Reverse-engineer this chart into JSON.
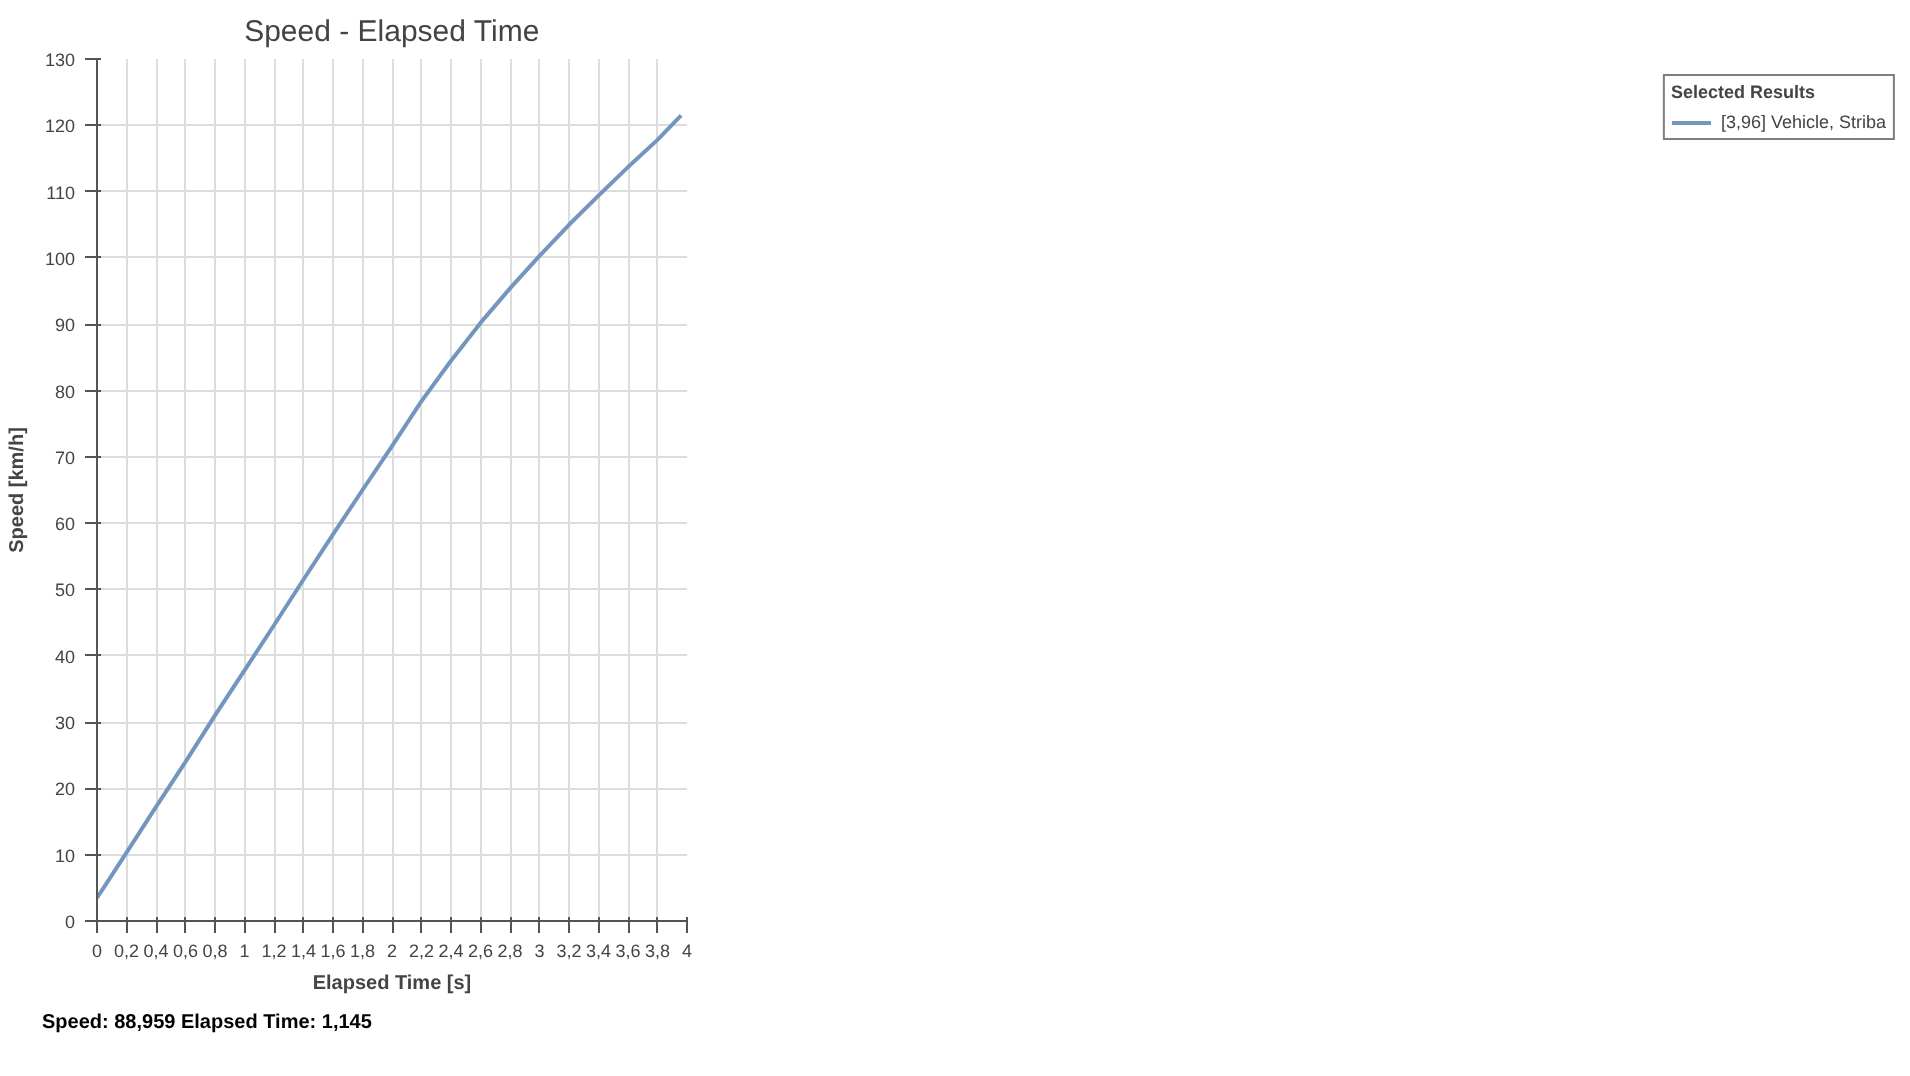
{
  "chart_data": {
    "type": "line",
    "title": "Speed - Elapsed Time",
    "xlabel": "Elapsed Time [s]",
    "ylabel": "Speed [km/h]",
    "legend_title": "Selected Results",
    "annotations": [
      "Speed: 88,959  Elapsed Time: 1,145"
    ],
    "x": [
      0,
      0.2,
      0.4,
      0.6,
      0.8,
      1.0,
      1.2,
      1.4,
      1.6,
      1.8,
      2.0,
      2.2,
      2.4,
      2.6,
      2.8,
      3.0,
      3.2,
      3.4,
      3.6,
      3.8,
      3.96
    ],
    "series": [
      {
        "name": "[3,96] Vehicle, Striba",
        "color": "#7396be",
        "values": [
          3.5,
          10.3,
          17.2,
          24,
          31,
          37.8,
          44.6,
          51.5,
          58.3,
          65,
          71.6,
          78.4,
          84.5,
          90.2,
          95.4,
          100.3,
          105,
          109.4,
          113.7,
          117.8,
          121.5
        ]
      }
    ],
    "xlim": [
      0,
      4
    ],
    "ylim": [
      0,
      130
    ],
    "xticks": [
      0,
      {
        "value": 0.2,
        "label": "0,2"
      },
      {
        "value": 0.4,
        "label": "0,4"
      },
      {
        "value": 0.6,
        "label": "0,6"
      },
      {
        "value": 0.8,
        "label": "0,8"
      },
      1,
      {
        "value": 1.2,
        "label": "1,2"
      },
      {
        "value": 1.4,
        "label": "1,4"
      },
      {
        "value": 1.6,
        "label": "1,6"
      },
      {
        "value": 1.8,
        "label": "1,8"
      },
      2,
      {
        "value": 2.2,
        "label": "2,2"
      },
      {
        "value": 2.4,
        "label": "2,4"
      },
      {
        "value": 2.6,
        "label": "2,6"
      },
      {
        "value": 2.8,
        "label": "2,8"
      },
      3,
      {
        "value": 3.2,
        "label": "3,2"
      },
      {
        "value": 3.4,
        "label": "3,4"
      },
      {
        "value": 3.6,
        "label": "3,6"
      },
      {
        "value": 3.8,
        "label": "3,8"
      },
      4
    ],
    "yticks": [
      0,
      10,
      20,
      30,
      40,
      50,
      60,
      70,
      80,
      90,
      100,
      110,
      120,
      130
    ],
    "grid": true,
    "legend": "right",
    "marker": "none",
    "line_style": "solid"
  }
}
